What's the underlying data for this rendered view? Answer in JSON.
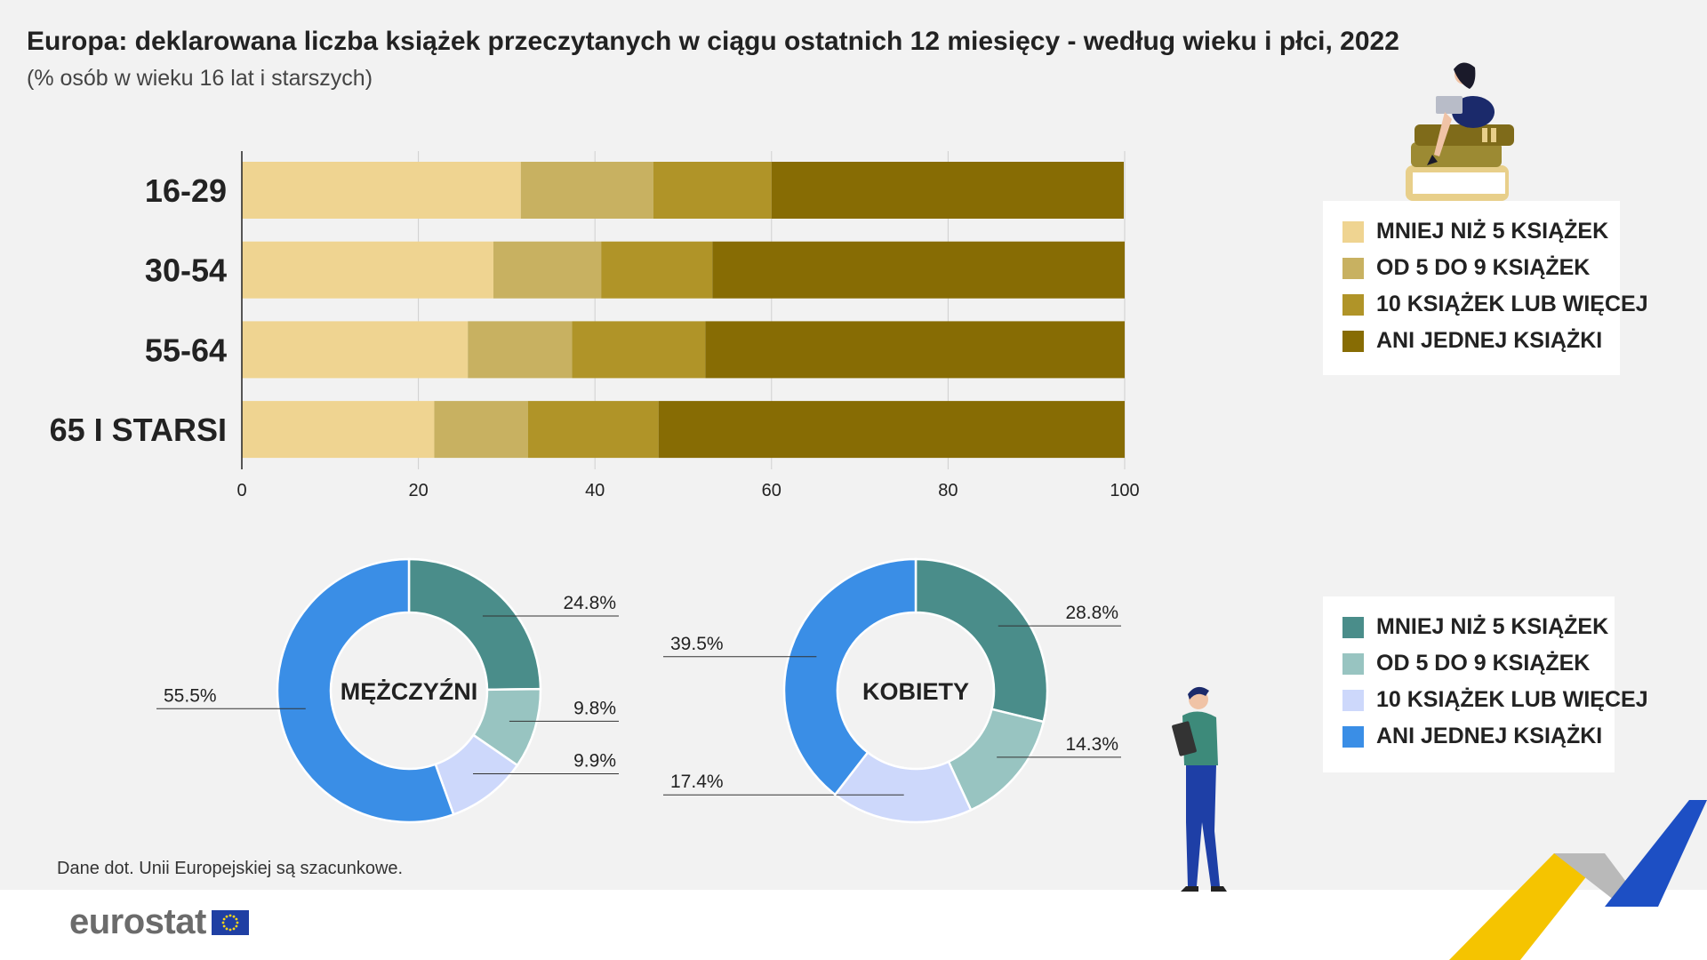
{
  "header": {
    "title": "Europa: deklarowana liczba książek przeczytanych w ciągu ostatnich 12 miesięcy - według wieku i płci, 2022",
    "subtitle": "(% osób w wieku 16 lat i starszych)"
  },
  "note": "Dane dot. Unii Europejskiej są szacunkowe.",
  "brand": {
    "logo_text": "eurostat"
  },
  "colors": {
    "bar": [
      "#efd491",
      "#c8b161",
      "#b09428",
      "#876c04"
    ],
    "donut": [
      "#4a8d8a",
      "#98c4c1",
      "#cdd8fb",
      "#3a8ee6"
    ],
    "background": "#f2f2f2"
  },
  "chart_data": [
    {
      "type": "bar",
      "orientation": "horizontal",
      "stacked": true,
      "categories": [
        "16-29",
        "30-54",
        "55-64",
        "65 I STARSI"
      ],
      "series": [
        {
          "name": "MNIEJ NIŻ 5 KSIĄŻEK",
          "values": [
            31.6,
            28.5,
            25.6,
            21.8
          ]
        },
        {
          "name": "OD 5 DO 9 KSIĄŻEK",
          "values": [
            15.0,
            12.2,
            11.8,
            10.6
          ]
        },
        {
          "name": "10 KSIĄŻEK LUB WIĘCEJ",
          "values": [
            13.4,
            12.6,
            15.1,
            14.8
          ]
        },
        {
          "name": "ANI JEDNEJ KSIĄŻKI",
          "values": [
            39.9,
            46.7,
            47.5,
            52.8
          ]
        }
      ],
      "xlim": [
        0,
        100
      ],
      "xticks": [
        0,
        20,
        40,
        60,
        80,
        100
      ],
      "grid": true,
      "legend_position": "right"
    },
    {
      "type": "pie",
      "donut": true,
      "center_label": "MĘŻCZYŹNI",
      "categories": [
        "MNIEJ NIŻ 5 KSIĄŻEK",
        "OD 5 DO 9 KSIĄŻEK",
        "10 KSIĄŻEK LUB WIĘCEJ",
        "ANI JEDNEJ KSIĄŻKI"
      ],
      "values": [
        24.8,
        9.8,
        9.9,
        55.5
      ],
      "labels": [
        "24.8%",
        "9.8%",
        "9.9%",
        "55.5%"
      ]
    },
    {
      "type": "pie",
      "donut": true,
      "center_label": "KOBIETY",
      "categories": [
        "MNIEJ NIŻ 5 KSIĄŻEK",
        "OD 5 DO 9 KSIĄŻEK",
        "10 KSIĄŻEK LUB WIĘCEJ",
        "ANI JEDNEJ KSIĄŻKI"
      ],
      "values": [
        28.8,
        14.3,
        17.4,
        39.5
      ],
      "labels": [
        "28.8%",
        "14.3%",
        "17.4%",
        "39.5%"
      ]
    }
  ]
}
